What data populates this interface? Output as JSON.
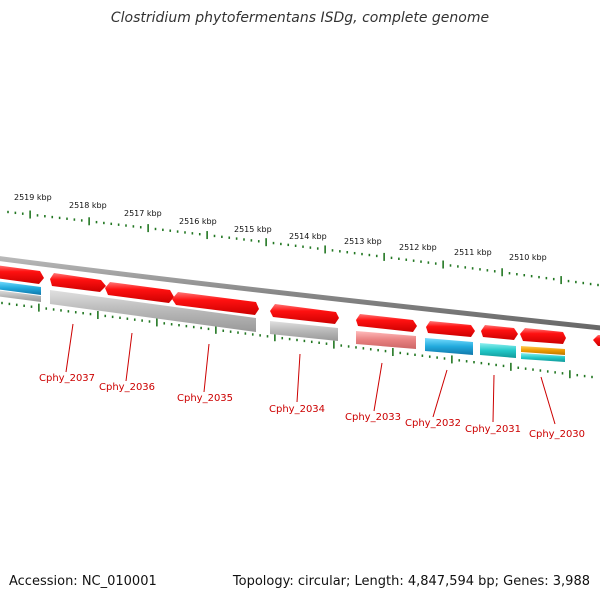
{
  "title": "Clostridium phytofermentans ISDg, complete genome",
  "footer": {
    "accession": "Accession: NC_010001",
    "summary": "Topology: circular; Length: 4,847,594 bp; Genes: 3,988"
  },
  "colors": {
    "forward_gene": "#ee1111",
    "gray_feature": "#b4b4b4",
    "blue_feature": "#22aadd",
    "cyan_feature": "#22c8c8",
    "orange_feature": "#ee9900",
    "pink_feature": "#e88080",
    "tick": "#227722",
    "label": "#cc0000",
    "backbone": "#888888"
  },
  "scale_labels": [
    "2519 kbp",
    "2518 kbp",
    "2517 kbp",
    "2516 kbp",
    "2515 kbp",
    "2514 kbp",
    "2513 kbp",
    "2512 kbp",
    "2511 kbp",
    "2510 kbp"
  ],
  "genes": [
    {
      "name": "Cphy_2037",
      "strand": "forward",
      "track": "gray"
    },
    {
      "name": "Cphy_2036",
      "strand": "forward",
      "track": "gray"
    },
    {
      "name": "Cphy_2035",
      "strand": "forward",
      "track": "gray"
    },
    {
      "name": "Cphy_2034",
      "strand": "forward",
      "track": "gray"
    },
    {
      "name": "Cphy_2033",
      "strand": "forward",
      "track": "pink"
    },
    {
      "name": "Cphy_2032",
      "strand": "forward",
      "track": "blue"
    },
    {
      "name": "Cphy_2031",
      "strand": "forward",
      "track": "cyan"
    },
    {
      "name": "Cphy_2030",
      "strand": "forward",
      "track": "orange"
    }
  ]
}
